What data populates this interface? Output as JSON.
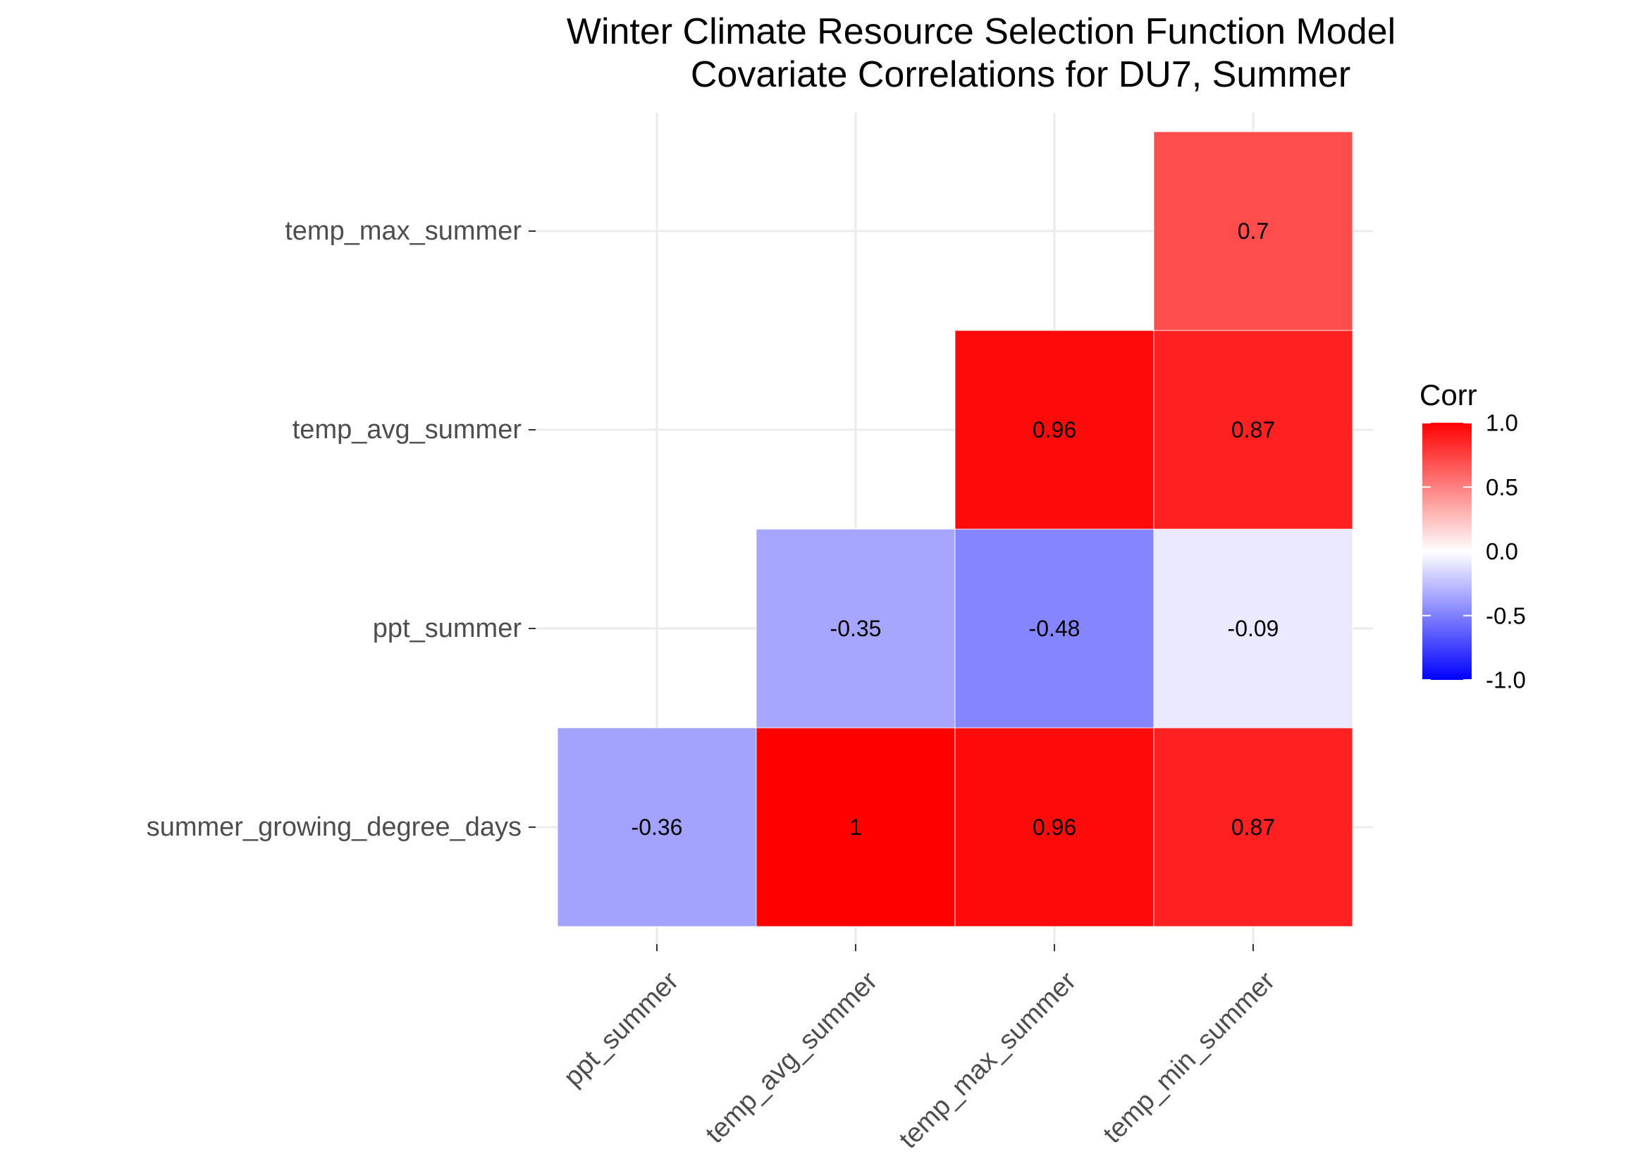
{
  "chart_data": {
    "type": "heatmap",
    "title_lines": [
      "Winter Climate Resource Selection Function Model",
      "Covariate Correlations for DU7, Summer"
    ],
    "xlabel": "",
    "ylabel": "",
    "x_categories": [
      "ppt_summer",
      "temp_avg_summer",
      "temp_max_summer",
      "temp_min_summer"
    ],
    "y_categories": [
      "summer_growing_degree_days",
      "ppt_summer",
      "temp_avg_summer",
      "temp_max_summer"
    ],
    "cells": [
      {
        "x": "ppt_summer",
        "y": "summer_growing_degree_days",
        "value": -0.36,
        "label": "-0.36"
      },
      {
        "x": "temp_avg_summer",
        "y": "summer_growing_degree_days",
        "value": 1,
        "label": "1"
      },
      {
        "x": "temp_max_summer",
        "y": "summer_growing_degree_days",
        "value": 0.96,
        "label": "0.96"
      },
      {
        "x": "temp_min_summer",
        "y": "summer_growing_degree_days",
        "value": 0.87,
        "label": "0.87"
      },
      {
        "x": "temp_avg_summer",
        "y": "ppt_summer",
        "value": -0.35,
        "label": "-0.35"
      },
      {
        "x": "temp_max_summer",
        "y": "ppt_summer",
        "value": -0.48,
        "label": "-0.48"
      },
      {
        "x": "temp_min_summer",
        "y": "ppt_summer",
        "value": -0.09,
        "label": "-0.09"
      },
      {
        "x": "temp_max_summer",
        "y": "temp_avg_summer",
        "value": 0.96,
        "label": "0.96"
      },
      {
        "x": "temp_min_summer",
        "y": "temp_avg_summer",
        "value": 0.87,
        "label": "0.87"
      },
      {
        "x": "temp_min_summer",
        "y": "temp_max_summer",
        "value": 0.7,
        "label": "0.7"
      }
    ],
    "color_scale": {
      "low": "#0000ff",
      "mid": "#ffffff",
      "high": "#ff0000",
      "limits": [
        -1,
        1
      ]
    },
    "legend": {
      "title": "Corr",
      "position": "right",
      "ticks": [
        {
          "value": 1.0,
          "label": "1.0"
        },
        {
          "value": 0.5,
          "label": "0.5"
        },
        {
          "value": 0.0,
          "label": "0.0"
        },
        {
          "value": -0.5,
          "label": "-0.5"
        },
        {
          "value": -1.0,
          "label": "-1.0"
        }
      ]
    },
    "grid": true
  }
}
